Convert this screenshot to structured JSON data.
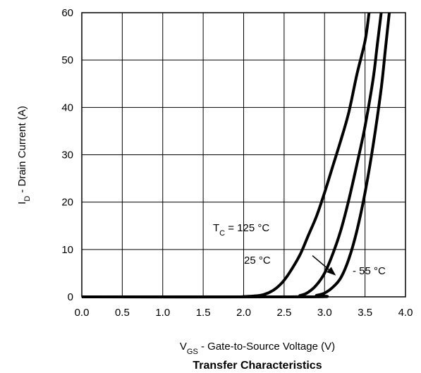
{
  "chart_data": {
    "type": "line",
    "title": "Transfer Characteristics",
    "xlabel": {
      "main": "V",
      "sub": "GS",
      "rest": " - Gate-to-Source Voltage (V)"
    },
    "ylabel": {
      "main": "I",
      "sub": "D",
      "rest": " - Drain Current (A)"
    },
    "xlim": [
      0.0,
      4.0
    ],
    "ylim": [
      0,
      60
    ],
    "xticks": [
      "0.0",
      "0.5",
      "1.0",
      "1.5",
      "2.0",
      "2.5",
      "3.0",
      "3.5",
      "4.0"
    ],
    "yticks": [
      "0",
      "10",
      "20",
      "30",
      "40",
      "50",
      "60"
    ],
    "grid": true,
    "series": [
      {
        "label_main": "T",
        "label_sub": "C",
        "label_rest": " = 125 °C",
        "points": [
          [
            0.0,
            0
          ],
          [
            1.8,
            0
          ],
          [
            2.0,
            0.05
          ],
          [
            2.2,
            0.3
          ],
          [
            2.3,
            0.8
          ],
          [
            2.4,
            1.8
          ],
          [
            2.5,
            3.5
          ],
          [
            2.6,
            6
          ],
          [
            2.7,
            9
          ],
          [
            2.8,
            13
          ],
          [
            2.9,
            17
          ],
          [
            3.0,
            22
          ],
          [
            3.1,
            27.5
          ],
          [
            3.2,
            33
          ],
          [
            3.3,
            39
          ],
          [
            3.4,
            47
          ],
          [
            3.5,
            54
          ],
          [
            3.55,
            60
          ]
        ]
      },
      {
        "label": "25 °C",
        "points": [
          [
            0.0,
            0
          ],
          [
            2.5,
            0
          ],
          [
            2.7,
            0.3
          ],
          [
            2.8,
            1
          ],
          [
            2.9,
            2.5
          ],
          [
            3.0,
            5
          ],
          [
            3.1,
            9
          ],
          [
            3.2,
            14
          ],
          [
            3.3,
            20.5
          ],
          [
            3.4,
            28
          ],
          [
            3.5,
            36
          ],
          [
            3.6,
            46
          ],
          [
            3.65,
            53
          ],
          [
            3.7,
            60
          ]
        ]
      },
      {
        "label": "- 55 °C",
        "points": [
          [
            0.0,
            0
          ],
          [
            2.8,
            0
          ],
          [
            2.9,
            0.3
          ],
          [
            3.0,
            0.8
          ],
          [
            3.1,
            2
          ],
          [
            3.2,
            4
          ],
          [
            3.3,
            8
          ],
          [
            3.4,
            14
          ],
          [
            3.5,
            22
          ],
          [
            3.6,
            32
          ],
          [
            3.7,
            44
          ],
          [
            3.75,
            52
          ],
          [
            3.8,
            60
          ]
        ]
      }
    ],
    "arrow": {
      "from": [
        2.85,
        8.7
      ],
      "to": [
        3.14,
        4.5
      ]
    }
  }
}
